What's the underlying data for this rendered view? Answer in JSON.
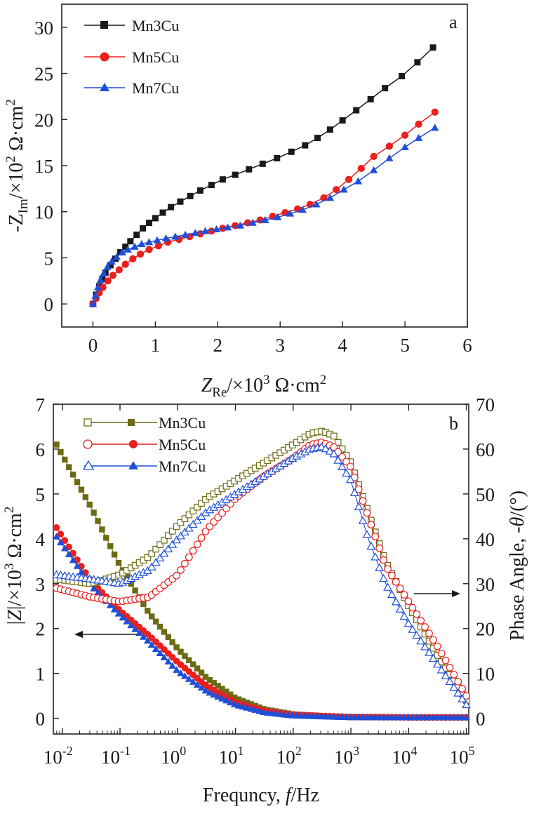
{
  "chart_data": [
    {
      "type": "scatter",
      "panel_label": "a",
      "xlabel": {
        "main": "Z",
        "sub": "Re",
        "rest": "/×10",
        "sup": "3",
        "unit": " Ω·cm",
        "unit_sup": "2"
      },
      "ylabel": {
        "prefix": "-Z",
        "sub": "Im",
        "rest": "/×10",
        "sup": "2",
        "unit": " Ω·cm",
        "unit_sup": "2"
      },
      "xlim": [
        -0.5,
        6
      ],
      "ylim": [
        -2.5,
        32.5
      ],
      "xticks": [
        0,
        1,
        2,
        3,
        4,
        5,
        6
      ],
      "yticks": [
        0,
        5,
        10,
        15,
        20,
        25,
        30
      ],
      "legend_position": "top-left",
      "series": [
        {
          "name": "Mn3Cu",
          "color": "#1a1a1a",
          "marker": "square",
          "filled": true,
          "points": [
            [
              0,
              0
            ],
            [
              0.05,
              1.0
            ],
            [
              0.1,
              1.9
            ],
            [
              0.15,
              2.7
            ],
            [
              0.2,
              3.4
            ],
            [
              0.28,
              4.2
            ],
            [
              0.36,
              4.9
            ],
            [
              0.44,
              5.6
            ],
            [
              0.52,
              6.2
            ],
            [
              0.6,
              6.8
            ],
            [
              0.7,
              7.5
            ],
            [
              0.8,
              8.2
            ],
            [
              0.9,
              8.8
            ],
            [
              1.0,
              9.3
            ],
            [
              1.12,
              9.9
            ],
            [
              1.25,
              10.5
            ],
            [
              1.4,
              11.1
            ],
            [
              1.56,
              11.7
            ],
            [
              1.72,
              12.3
            ],
            [
              1.9,
              12.9
            ],
            [
              2.08,
              13.5
            ],
            [
              2.28,
              14.0
            ],
            [
              2.5,
              14.6
            ],
            [
              2.72,
              15.2
            ],
            [
              2.95,
              15.8
            ],
            [
              3.18,
              16.5
            ],
            [
              3.4,
              17.2
            ],
            [
              3.6,
              18.0
            ],
            [
              3.8,
              18.9
            ],
            [
              4.0,
              19.9
            ],
            [
              4.22,
              21.0
            ],
            [
              4.45,
              22.2
            ],
            [
              4.68,
              23.4
            ],
            [
              4.95,
              24.7
            ],
            [
              5.2,
              26.2
            ],
            [
              5.45,
              27.8
            ]
          ]
        },
        {
          "name": "Mn5Cu",
          "color": "#e8201e",
          "marker": "circle",
          "filled": true,
          "points": [
            [
              0,
              0
            ],
            [
              0.05,
              0.6
            ],
            [
              0.1,
              1.2
            ],
            [
              0.16,
              1.8
            ],
            [
              0.24,
              2.5
            ],
            [
              0.32,
              3.1
            ],
            [
              0.42,
              3.7
            ],
            [
              0.52,
              4.3
            ],
            [
              0.64,
              4.9
            ],
            [
              0.76,
              5.4
            ],
            [
              0.9,
              5.9
            ],
            [
              1.05,
              6.3
            ],
            [
              1.2,
              6.7
            ],
            [
              1.38,
              7.0
            ],
            [
              1.55,
              7.3
            ],
            [
              1.72,
              7.6
            ],
            [
              1.9,
              7.9
            ],
            [
              2.08,
              8.2
            ],
            [
              2.28,
              8.5
            ],
            [
              2.48,
              8.8
            ],
            [
              2.68,
              9.1
            ],
            [
              2.88,
              9.5
            ],
            [
              3.08,
              9.9
            ],
            [
              3.28,
              10.3
            ],
            [
              3.48,
              10.8
            ],
            [
              3.7,
              11.5
            ],
            [
              3.9,
              12.4
            ],
            [
              4.1,
              13.5
            ],
            [
              4.3,
              14.7
            ],
            [
              4.5,
              16.0
            ],
            [
              4.75,
              17.1
            ],
            [
              5.0,
              18.3
            ],
            [
              5.22,
              19.5
            ],
            [
              5.48,
              20.8
            ]
          ]
        },
        {
          "name": "Mn7Cu",
          "color": "#1f4fd8",
          "marker": "triangle",
          "filled": true,
          "points": [
            [
              0,
              0
            ],
            [
              0.04,
              0.9
            ],
            [
              0.08,
              1.8
            ],
            [
              0.12,
              2.6
            ],
            [
              0.17,
              3.3
            ],
            [
              0.23,
              4.0
            ],
            [
              0.3,
              4.6
            ],
            [
              0.38,
              5.1
            ],
            [
              0.47,
              5.6
            ],
            [
              0.56,
              5.9
            ],
            [
              0.67,
              6.2
            ],
            [
              0.78,
              6.5
            ],
            [
              0.9,
              6.7
            ],
            [
              1.03,
              6.9
            ],
            [
              1.17,
              7.1
            ],
            [
              1.32,
              7.3
            ],
            [
              1.48,
              7.5
            ],
            [
              1.64,
              7.7
            ],
            [
              1.8,
              7.9
            ],
            [
              1.98,
              8.1
            ],
            [
              2.16,
              8.3
            ],
            [
              2.36,
              8.5
            ],
            [
              2.56,
              8.8
            ],
            [
              2.76,
              9.1
            ],
            [
              2.96,
              9.4
            ],
            [
              3.16,
              9.8
            ],
            [
              3.36,
              10.2
            ],
            [
              3.58,
              10.8
            ],
            [
              3.8,
              11.5
            ],
            [
              4.02,
              12.4
            ],
            [
              4.25,
              13.3
            ],
            [
              4.5,
              14.5
            ],
            [
              4.75,
              15.8
            ],
            [
              5.0,
              17.0
            ],
            [
              5.22,
              18.0
            ],
            [
              5.48,
              19.1
            ]
          ]
        }
      ]
    },
    {
      "type": "scatter",
      "panel_label": "b",
      "xscale": "log",
      "xlim": [
        0.007,
        110000
      ],
      "ylim": [
        -0.35,
        7
      ],
      "y2lim": [
        -3.5,
        70
      ],
      "xticks": [
        {
          "base": "10",
          "exp": "-2"
        },
        {
          "base": "10",
          "exp": "-1"
        },
        {
          "base": "10",
          "exp": "0"
        },
        {
          "base": "10",
          "exp": "1"
        },
        {
          "base": "10",
          "exp": "2"
        },
        {
          "base": "10",
          "exp": "3"
        },
        {
          "base": "10",
          "exp": "4"
        },
        {
          "base": "10",
          "exp": "5"
        }
      ],
      "yticks": [
        0,
        1,
        2,
        3,
        4,
        5,
        6,
        7
      ],
      "y2ticks": [
        0,
        10,
        20,
        30,
        40,
        50,
        60,
        70
      ],
      "xlabel": {
        "pre": "Frequncy, ",
        "ital": "f",
        "post": "/Hz"
      },
      "ylabel": {
        "pre": "|",
        "ital": "Z",
        "mid": "|/×10",
        "sup": "3",
        "unit": " Ω·cm",
        "unit_sup": "2"
      },
      "y2label": {
        "pre": "Phase Angle, -",
        "ital": "θ",
        "post": "/(°)"
      },
      "legend_position": "top-left",
      "legend": [
        {
          "name": "Mn3Cu",
          "color": "#6b6b14",
          "marker": "square"
        },
        {
          "name": "Mn5Cu",
          "color": "#e8201e",
          "marker": "circle"
        },
        {
          "name": "Mn7Cu",
          "color": "#1f4fd8",
          "marker": "triangle"
        }
      ],
      "series": [
        {
          "name": "Mn3Cu |Z|",
          "axis": "left",
          "color": "#6b6b14",
          "marker": "square",
          "filled": true,
          "log_f": [
            -2.1,
            -1.5,
            -1.0,
            -0.5,
            0.0,
            0.5,
            1.0,
            1.5,
            2.0,
            2.5,
            3.0,
            4.0,
            5.0
          ],
          "values": [
            6.1,
            4.7,
            3.4,
            2.35,
            1.55,
            0.9,
            0.45,
            0.2,
            0.09,
            0.05,
            0.03,
            0.02,
            0.02
          ]
        },
        {
          "name": "Mn5Cu |Z|",
          "axis": "left",
          "color": "#e8201e",
          "marker": "circle",
          "filled": true,
          "log_f": [
            -2.1,
            -1.5,
            -1.0,
            -0.5,
            0.0,
            0.5,
            1.0,
            1.5,
            2.0,
            2.5,
            3.0,
            4.0,
            5.0
          ],
          "values": [
            4.25,
            3.05,
            2.4,
            1.85,
            1.25,
            0.72,
            0.35,
            0.16,
            0.08,
            0.05,
            0.03,
            0.02,
            0.02
          ]
        },
        {
          "name": "Mn7Cu |Z|",
          "axis": "left",
          "color": "#1f4fd8",
          "marker": "triangle",
          "filled": true,
          "log_f": [
            -2.1,
            -1.5,
            -1.0,
            -0.5,
            0.0,
            0.5,
            1.0,
            1.5,
            2.0,
            2.5,
            3.0,
            4.0,
            5.0
          ],
          "values": [
            4.05,
            2.95,
            2.3,
            1.7,
            1.05,
            0.6,
            0.3,
            0.13,
            0.06,
            0.04,
            0.02,
            0.02,
            0.02
          ]
        },
        {
          "name": "Mn3Cu phase",
          "axis": "right",
          "color": "#6b6b14",
          "marker": "square",
          "filled": false,
          "log_f": [
            -2.1,
            -1.5,
            -1.0,
            -0.5,
            0.0,
            0.5,
            1.0,
            1.5,
            2.0,
            2.3,
            2.5,
            2.7,
            3.0,
            3.3,
            3.6,
            4.0,
            4.5,
            5.0
          ],
          "values": [
            31,
            30,
            32,
            36,
            43,
            49,
            53,
            57,
            61,
            63.5,
            64,
            63,
            57,
            46,
            35,
            25,
            14,
            4
          ]
        },
        {
          "name": "Mn5Cu phase",
          "axis": "right",
          "color": "#e8201e",
          "marker": "circle",
          "filled": false,
          "log_f": [
            -2.1,
            -1.5,
            -1.0,
            -0.5,
            0.0,
            0.5,
            1.0,
            1.5,
            2.0,
            2.3,
            2.5,
            2.7,
            3.0,
            3.3,
            3.6,
            4.0,
            4.5,
            5.0
          ],
          "values": [
            29,
            27,
            26,
            27,
            32,
            42,
            49,
            54,
            58,
            61,
            61.5,
            60.5,
            56,
            45,
            34,
            26,
            16,
            5
          ]
        },
        {
          "name": "Mn7Cu phase",
          "axis": "right",
          "color": "#1f4fd8",
          "marker": "triangle",
          "filled": false,
          "log_f": [
            -2.1,
            -1.5,
            -1.0,
            -0.5,
            0.0,
            0.5,
            1.0,
            1.5,
            2.0,
            2.3,
            2.5,
            2.7,
            3.0,
            3.3,
            3.6,
            4.0,
            4.5,
            5.0
          ],
          "values": [
            32,
            31,
            30,
            33,
            40,
            46,
            50,
            54,
            58,
            60,
            60.5,
            59,
            53,
            40,
            30,
            21,
            12,
            3
          ]
        }
      ],
      "annotations": [
        {
          "text": "",
          "arrow": "left",
          "points_to_axis": "left"
        },
        {
          "text": "",
          "arrow": "right",
          "points_to_axis": "right"
        }
      ]
    }
  ]
}
